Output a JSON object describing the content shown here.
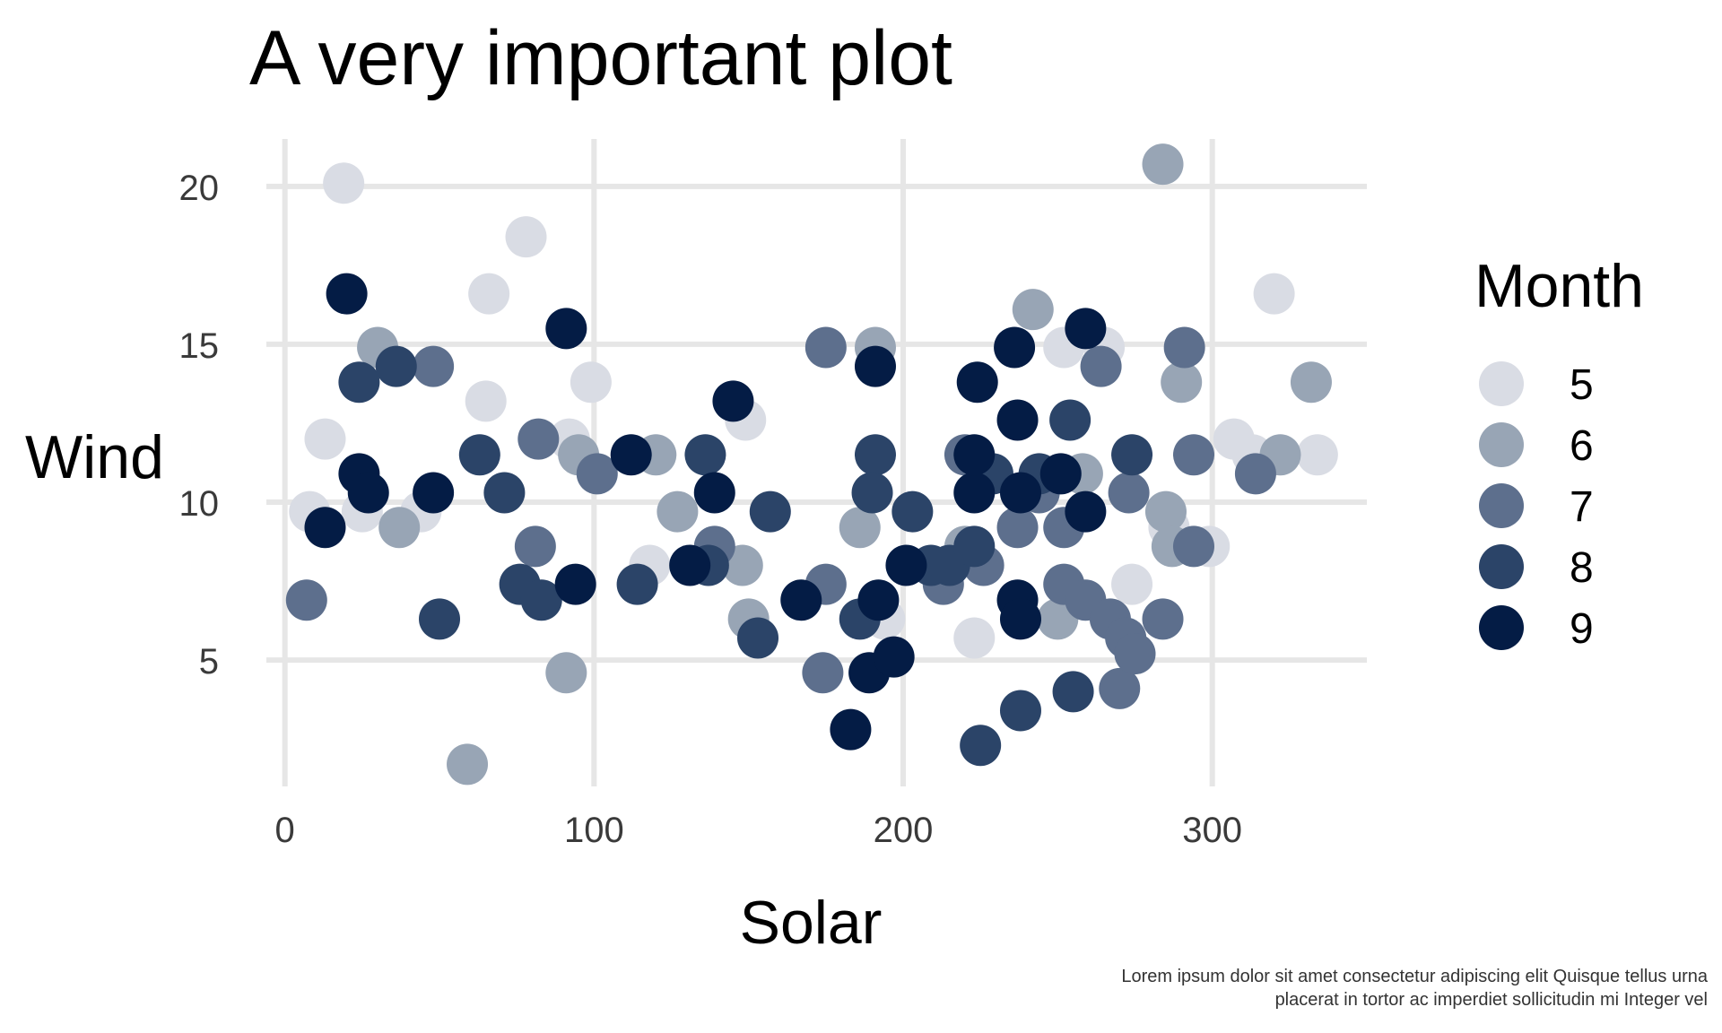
{
  "chart_data": {
    "type": "scatter",
    "title": "A very important plot",
    "xlabel": "Solar",
    "ylabel": "Wind",
    "xlim": [
      -6,
      350
    ],
    "ylim": [
      1,
      21.5
    ],
    "x_ticks": [
      0,
      100,
      200,
      300
    ],
    "y_ticks": [
      5,
      10,
      15,
      20
    ],
    "grid": true,
    "legend_title": "Month",
    "legend_position": "right",
    "caption": [
      "Lorem ipsum dolor sit amet consectetur adipiscing elit Quisque tellus urna",
      "placerat in tortor ac imperdiet sollicitudin mi Integer vel"
    ],
    "series": [
      {
        "name": "5",
        "color": "#d9dce4",
        "points": [
          {
            "x": 19,
            "y": 20.1
          },
          {
            "x": 78,
            "y": 18.4
          },
          {
            "x": 66,
            "y": 16.6
          },
          {
            "x": 320,
            "y": 16.6
          },
          {
            "x": 13,
            "y": 12.0
          },
          {
            "x": 65,
            "y": 13.2
          },
          {
            "x": 99,
            "y": 13.8
          },
          {
            "x": 8,
            "y": 9.7
          },
          {
            "x": 25,
            "y": 9.7
          },
          {
            "x": 44,
            "y": 9.7
          },
          {
            "x": 92,
            "y": 12.0
          },
          {
            "x": 118,
            "y": 8.0
          },
          {
            "x": 149,
            "y": 12.6
          },
          {
            "x": 223,
            "y": 5.7
          },
          {
            "x": 252,
            "y": 14.9
          },
          {
            "x": 265,
            "y": 14.9
          },
          {
            "x": 274,
            "y": 7.4
          },
          {
            "x": 286,
            "y": 9.2
          },
          {
            "x": 299,
            "y": 8.6
          },
          {
            "x": 307,
            "y": 12.0
          },
          {
            "x": 313,
            "y": 11.5
          },
          {
            "x": 334,
            "y": 11.5
          },
          {
            "x": 194,
            "y": 6.3
          }
        ]
      },
      {
        "name": "6",
        "color": "#98a5b5",
        "points": [
          {
            "x": 284,
            "y": 20.7
          },
          {
            "x": 242,
            "y": 16.1
          },
          {
            "x": 30,
            "y": 14.9
          },
          {
            "x": 191,
            "y": 14.9
          },
          {
            "x": 290,
            "y": 13.8
          },
          {
            "x": 332,
            "y": 13.8
          },
          {
            "x": 322,
            "y": 11.5
          },
          {
            "x": 95,
            "y": 11.5
          },
          {
            "x": 120,
            "y": 11.5
          },
          {
            "x": 127,
            "y": 9.7
          },
          {
            "x": 37,
            "y": 9.2
          },
          {
            "x": 186,
            "y": 9.2
          },
          {
            "x": 285,
            "y": 9.7
          },
          {
            "x": 287,
            "y": 8.6
          },
          {
            "x": 148,
            "y": 8.0
          },
          {
            "x": 150,
            "y": 6.3
          },
          {
            "x": 250,
            "y": 6.3
          },
          {
            "x": 91,
            "y": 4.6
          },
          {
            "x": 59,
            "y": 1.7
          },
          {
            "x": 220,
            "y": 8.6
          },
          {
            "x": 258,
            "y": 10.9
          }
        ]
      },
      {
        "name": "7",
        "color": "#5d6f8d",
        "points": [
          {
            "x": 7,
            "y": 6.9
          },
          {
            "x": 48,
            "y": 14.3
          },
          {
            "x": 82,
            "y": 12.0
          },
          {
            "x": 81,
            "y": 8.6
          },
          {
            "x": 101,
            "y": 10.9
          },
          {
            "x": 139,
            "y": 8.6
          },
          {
            "x": 175,
            "y": 14.9
          },
          {
            "x": 175,
            "y": 7.4
          },
          {
            "x": 174,
            "y": 4.6
          },
          {
            "x": 213,
            "y": 7.4
          },
          {
            "x": 220,
            "y": 11.5
          },
          {
            "x": 226,
            "y": 8.0
          },
          {
            "x": 237,
            "y": 9.2
          },
          {
            "x": 244,
            "y": 10.3
          },
          {
            "x": 252,
            "y": 9.2
          },
          {
            "x": 252,
            "y": 7.4
          },
          {
            "x": 259,
            "y": 6.9
          },
          {
            "x": 264,
            "y": 14.3
          },
          {
            "x": 267,
            "y": 6.3
          },
          {
            "x": 270,
            "y": 4.1
          },
          {
            "x": 272,
            "y": 5.7
          },
          {
            "x": 273,
            "y": 10.3
          },
          {
            "x": 275,
            "y": 5.2
          },
          {
            "x": 284,
            "y": 6.3
          },
          {
            "x": 291,
            "y": 14.9
          },
          {
            "x": 294,
            "y": 11.5
          },
          {
            "x": 294,
            "y": 8.6
          },
          {
            "x": 314,
            "y": 10.9
          }
        ]
      },
      {
        "name": "8",
        "color": "#2b4468",
        "points": [
          {
            "x": 24,
            "y": 13.8
          },
          {
            "x": 36,
            "y": 14.3
          },
          {
            "x": 50,
            "y": 6.3
          },
          {
            "x": 63,
            "y": 11.5
          },
          {
            "x": 71,
            "y": 10.3
          },
          {
            "x": 76,
            "y": 7.4
          },
          {
            "x": 83,
            "y": 6.9
          },
          {
            "x": 114,
            "y": 7.4
          },
          {
            "x": 136,
            "y": 11.5
          },
          {
            "x": 137,
            "y": 8.0
          },
          {
            "x": 153,
            "y": 5.7
          },
          {
            "x": 157,
            "y": 9.7
          },
          {
            "x": 186,
            "y": 6.3
          },
          {
            "x": 191,
            "y": 11.5
          },
          {
            "x": 190,
            "y": 10.3
          },
          {
            "x": 203,
            "y": 9.7
          },
          {
            "x": 209,
            "y": 8.0
          },
          {
            "x": 215,
            "y": 8.0
          },
          {
            "x": 223,
            "y": 8.6
          },
          {
            "x": 225,
            "y": 2.3
          },
          {
            "x": 229,
            "y": 10.9
          },
          {
            "x": 238,
            "y": 3.4
          },
          {
            "x": 244,
            "y": 10.9
          },
          {
            "x": 254,
            "y": 12.6
          },
          {
            "x": 255,
            "y": 4.0
          },
          {
            "x": 274,
            "y": 11.5
          }
        ]
      },
      {
        "name": "9",
        "color": "#041c45",
        "points": [
          {
            "x": 20,
            "y": 16.6
          },
          {
            "x": 91,
            "y": 15.5
          },
          {
            "x": 13,
            "y": 9.2
          },
          {
            "x": 24,
            "y": 10.9
          },
          {
            "x": 27,
            "y": 10.3
          },
          {
            "x": 48,
            "y": 10.3
          },
          {
            "x": 94,
            "y": 7.4
          },
          {
            "x": 112,
            "y": 11.5
          },
          {
            "x": 131,
            "y": 8.0
          },
          {
            "x": 139,
            "y": 10.3
          },
          {
            "x": 145,
            "y": 13.2
          },
          {
            "x": 167,
            "y": 6.9
          },
          {
            "x": 183,
            "y": 2.8
          },
          {
            "x": 189,
            "y": 4.6
          },
          {
            "x": 191,
            "y": 14.3
          },
          {
            "x": 192,
            "y": 6.9
          },
          {
            "x": 197,
            "y": 5.1
          },
          {
            "x": 201,
            "y": 8.0
          },
          {
            "x": 223,
            "y": 10.3
          },
          {
            "x": 224,
            "y": 13.8
          },
          {
            "x": 223,
            "y": 11.5
          },
          {
            "x": 236,
            "y": 14.9
          },
          {
            "x": 237,
            "y": 12.6
          },
          {
            "x": 238,
            "y": 10.3
          },
          {
            "x": 237,
            "y": 6.9
          },
          {
            "x": 238,
            "y": 6.3
          },
          {
            "x": 251,
            "y": 10.9
          },
          {
            "x": 259,
            "y": 15.5
          },
          {
            "x": 259,
            "y": 9.7
          }
        ]
      }
    ]
  }
}
